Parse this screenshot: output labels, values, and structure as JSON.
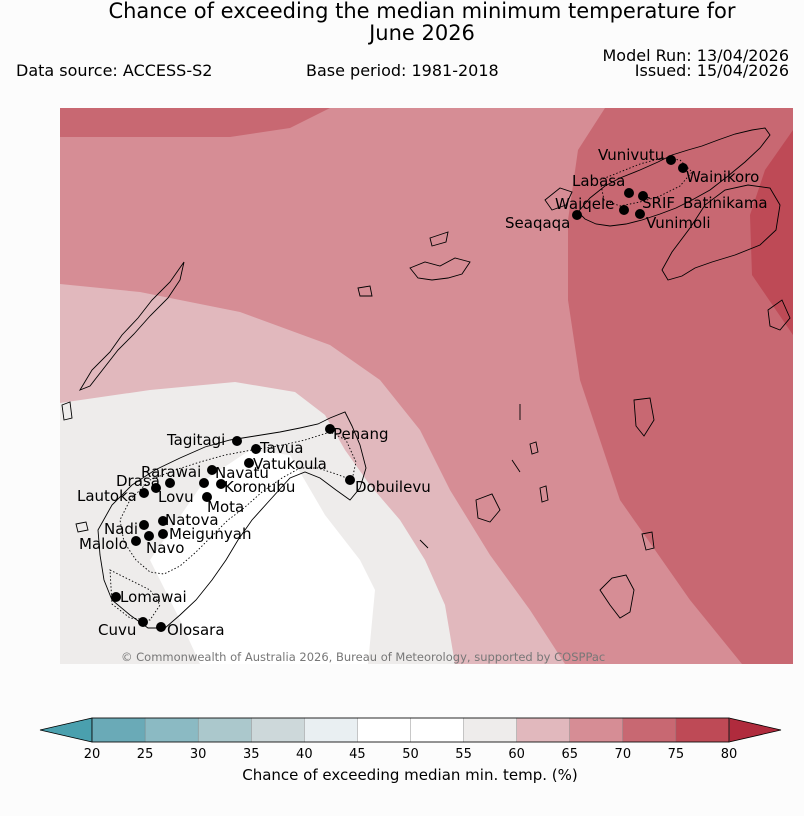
{
  "title_line1": "Chance of exceeding the median minimum temperature for",
  "title_line2": "June 2026",
  "data_source": "Data source: ACCESS-S2",
  "base_period": "Base period: 1981-2018",
  "model_run": "Model Run: 13/04/2026",
  "issued": "Issued: 15/04/2026",
  "copyright": "© Commonwealth of Australia 2026, Bureau of Meteorology, supported by COSPPac",
  "colorbar": {
    "label": "Chance of exceeding median min. temp. (%)",
    "ticks": [
      "20",
      "25",
      "30",
      "35",
      "40",
      "45",
      "50",
      "55",
      "60",
      "65",
      "70",
      "75",
      "80"
    ],
    "colors": [
      "#6aaab7",
      "#8bbac3",
      "#abc8cc",
      "#cdd8da",
      "#e9eff2",
      "#ffffff",
      "#ffffff",
      "#eeeceb",
      "#e1b8bd",
      "#d68d95",
      "#c86872",
      "#be4a56"
    ],
    "under_color": "#4aa0ae",
    "over_color": "#b02b3d"
  },
  "places": [
    "Vunivutu",
    "Wainikoro",
    "Labasa",
    "Waiqele",
    "SRIF",
    "Batinikama",
    "Seaqaqa",
    "Vunimoli",
    "Tagitagi",
    "Penang",
    "Tavua",
    "Vatukoula",
    "Rarawai",
    "Navatu",
    "Drasa",
    "Koronubu",
    "Lautoka",
    "Lovu",
    "Dobuilevu",
    "Mota",
    "Natova",
    "Nadi",
    "Meigunyah",
    "Malolo",
    "Navo",
    "Lomawai",
    "Cuvu",
    "Olosara"
  ]
}
